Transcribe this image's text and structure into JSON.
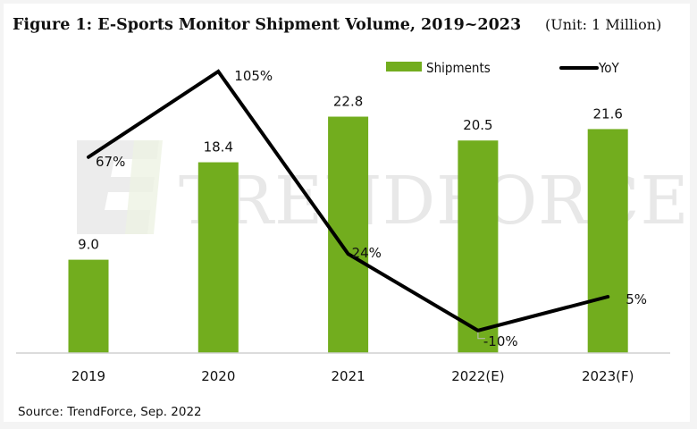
{
  "chart_data": {
    "type": "bar",
    "title": "Figure 1: E-Sports Monitor Shipment Volume, 2019~2023",
    "unit_label": "(Unit: 1 Million)",
    "categories": [
      "2019",
      "2020",
      "2021",
      "2022(E)",
      "2023(F)"
    ],
    "series": [
      {
        "name": "Shipments",
        "type": "bar",
        "color": "#72ad1e",
        "values": [
          9.0,
          18.4,
          22.8,
          20.5,
          21.6
        ],
        "labels": [
          "9.0",
          "18.4",
          "22.8",
          "20.5",
          "21.6"
        ]
      },
      {
        "name": "YoY",
        "type": "line",
        "color": "#000000",
        "values": [
          67,
          105,
          24,
          -10,
          5
        ],
        "labels": [
          "67%",
          "105%",
          "24%",
          "-10%",
          "5%"
        ],
        "axis": "secondary"
      }
    ],
    "xlabel": "",
    "ylabel": "",
    "ylim": [
      0,
      30
    ],
    "y2lim": [
      -20,
      130
    ],
    "grid": false,
    "legend_position": "top-right",
    "source": "Source: TrendForce, Sep. 2022",
    "watermark": "TRENDFORCE"
  }
}
